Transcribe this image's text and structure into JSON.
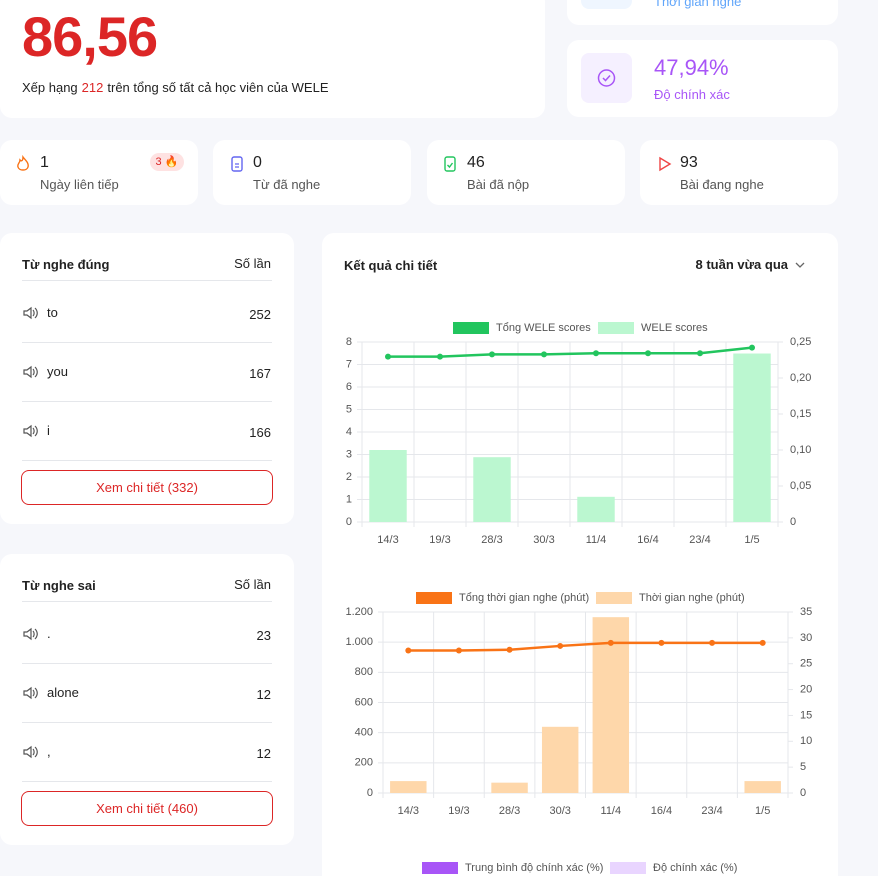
{
  "header": {
    "score": "86,56",
    "rank_prefix": "Xếp hạng",
    "rank": 212,
    "rank_suffix": "trên tổng số tất cả học viên của WELE"
  },
  "cards": {
    "listening_time_label": "Thời gian nghe",
    "accuracy": "47,94%",
    "accuracy_label": "Độ chính xác"
  },
  "stats": [
    {
      "value": 1,
      "label": "Ngày liên tiếp",
      "badge": 3
    },
    {
      "value": 0,
      "label": "Từ đã nghe"
    },
    {
      "value": 46,
      "label": "Bài đã nộp"
    },
    {
      "value": 93,
      "label": "Bài đang nghe"
    }
  ],
  "correct_words": {
    "title": "Từ nghe đúng",
    "count_header": "Số lần",
    "rows": [
      [
        "to",
        252
      ],
      [
        "you",
        167
      ],
      [
        "i",
        166
      ]
    ],
    "button": "Xem chi tiết (332)"
  },
  "wrong_words": {
    "title": "Từ nghe sai",
    "count_header": "Số lần",
    "rows": [
      [
        ".",
        23
      ],
      [
        "alone",
        12
      ],
      [
        ",",
        12
      ]
    ],
    "button": "Xem chi tiết (460)"
  },
  "detail": {
    "title": "Kết quả chi tiết",
    "period": "8 tuần vừa qua"
  },
  "chart_data": [
    {
      "type": "combo",
      "categories": [
        "14/3",
        "19/3",
        "28/3",
        "30/3",
        "11/4",
        "16/4",
        "23/4",
        "1/5"
      ],
      "series": [
        {
          "name": "Tổng WELE scores",
          "kind": "line",
          "color": "#22c55e",
          "values": [
            7.35,
            7.35,
            7.45,
            7.45,
            7.5,
            7.5,
            7.5,
            7.75
          ]
        },
        {
          "name": "WELE scores",
          "kind": "bar",
          "axis": "y2",
          "color": "#bbf7d0",
          "values": [
            0.1,
            0,
            0.09,
            0,
            0.035,
            0,
            0,
            0.234
          ]
        }
      ],
      "ylim": [
        0,
        8
      ],
      "yticks": [
        0,
        1,
        2,
        3,
        4,
        5,
        6,
        7,
        8
      ],
      "y2lim": [
        0,
        0.25
      ],
      "y2ticks": [
        0,
        {
          "value": 0.05,
          "label": "0,05"
        },
        {
          "value": 0.1,
          "label": "0,10"
        },
        {
          "value": 0.15,
          "label": "0,15"
        },
        {
          "value": 0.2,
          "label": "0,20"
        },
        {
          "value": 0.25,
          "label": "0,25"
        }
      ],
      "grid": true
    },
    {
      "type": "combo",
      "categories": [
        "14/3",
        "19/3",
        "28/3",
        "30/3",
        "11/4",
        "16/4",
        "23/4",
        "1/5"
      ],
      "series": [
        {
          "name": "Tổng thời gian nghe (phút)",
          "kind": "line",
          "color": "#f97316",
          "values": [
            945,
            945,
            950,
            975,
            995,
            995,
            995,
            995
          ]
        },
        {
          "name": "Thời gian nghe (phút)",
          "kind": "bar",
          "axis": "y2",
          "color": "#fed7aa",
          "values": [
            2.3,
            0,
            2,
            12.8,
            34,
            0,
            0,
            2.3
          ]
        }
      ],
      "ylim": [
        0,
        1200
      ],
      "yticks": [
        0,
        200,
        400,
        600,
        800,
        {
          "value": 1000,
          "label": "1.000"
        },
        {
          "value": 1200,
          "label": "1.200"
        }
      ],
      "y2lim": [
        0,
        35
      ],
      "y2ticks": [
        0,
        5,
        10,
        15,
        20,
        25,
        30,
        35
      ],
      "grid": true
    },
    {
      "type": "combo",
      "series": [
        {
          "name": "Trung bình độ chính xác (%)",
          "kind": "line",
          "color": "#a855f7"
        },
        {
          "name": "Độ chính xác (%)",
          "kind": "bar",
          "axis": "y2",
          "color": "#e9d5ff"
        }
      ]
    }
  ]
}
